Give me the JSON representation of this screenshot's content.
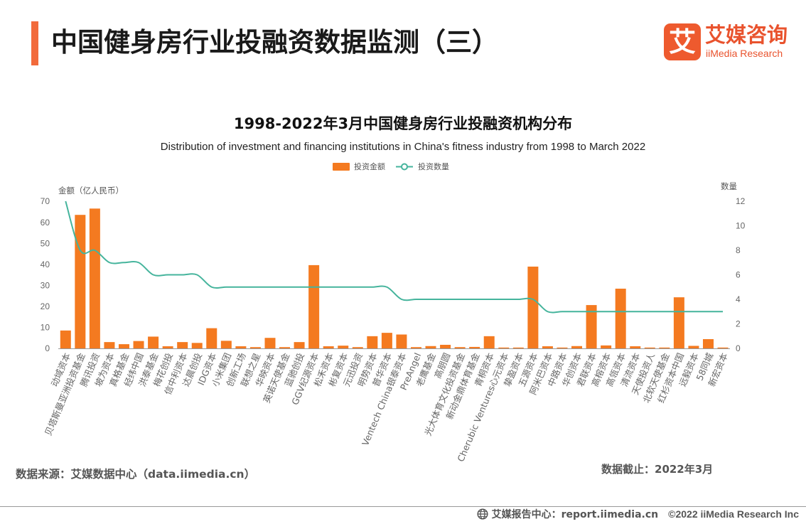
{
  "header": {
    "title": "中国健身房行业投融资数据监测（三）",
    "accent_color": "#F26A3B"
  },
  "logo": {
    "mark": "艾",
    "name_cn": "艾媒咨询",
    "name_en": "iiMedia Research",
    "color": "#EE5A2E"
  },
  "chart_data": {
    "type": "bar",
    "title": "1998-2022年3月中国健身房行业投融资机构分布",
    "subtitle": "Distribution of investment and financing institutions in China's fitness industry from 1998 to March 2022",
    "categories": [
      "动域资本",
      "贝塔斯曼亚洲投资基金",
      "腾讯投资",
      "坡为资本",
      "真格基金",
      "经纬中国",
      "洪泰基金",
      "梅花创投",
      "信中利资本",
      "达晨创投",
      "IDG资本",
      "小米集团",
      "创新工场",
      "联想之星",
      "华映资本",
      "英诺天使基金",
      "蓝驰创投",
      "GGV纪源资本",
      "松禾资本",
      "彬复资本",
      "元迅投资",
      "明势资本",
      "普华资本",
      "Ventech China银泰资本",
      "PreAngel",
      "老鹰基金",
      "高朋圆",
      "光大体育文化投资基金",
      "新动金鼎体育基金",
      "青桐资本",
      "Cherubic Ventures心元资本",
      "挚盈资本",
      "五源资本",
      "阿米巴资本",
      "中路资本",
      "华创资本",
      "君联资本",
      "高榕资本",
      "高瓴资本",
      "清流资本",
      "天使投资人",
      "北软天使基金",
      "红杉资本中国",
      "远毅资本",
      "58同城",
      "新宏资本"
    ],
    "series": [
      {
        "name": "投资金额",
        "type": "bar",
        "axis": "left",
        "values": [
          8.5,
          63.5,
          66.5,
          3,
          2,
          3.5,
          5.6,
          1,
          3,
          2.6,
          9.6,
          3.6,
          1,
          0.6,
          5,
          0.6,
          3,
          39.6,
          1,
          1.3,
          0.6,
          5.8,
          7.4,
          6.6,
          0.6,
          1.1,
          1.7,
          0.6,
          0.7,
          5.8,
          0.4,
          0.4,
          38.9,
          1,
          0.4,
          1.1,
          20.6,
          1.4,
          28.4,
          1,
          0.4,
          0.4,
          24.3,
          1.2,
          4.4,
          0.4
        ]
      },
      {
        "name": "投资数量",
        "type": "line",
        "axis": "right",
        "smooth": true,
        "values": [
          12,
          8,
          8,
          7,
          7,
          7,
          6,
          6,
          6,
          6,
          5,
          5,
          5,
          5,
          5,
          5,
          5,
          5,
          5,
          5,
          5,
          5,
          5,
          4,
          4,
          4,
          4,
          4,
          4,
          4,
          4,
          4,
          4,
          3,
          3,
          3,
          3,
          3,
          3,
          3,
          3,
          3,
          3,
          3,
          3,
          3
        ]
      }
    ],
    "xlabel": "",
    "ylabel": "金额（亿人民币）",
    "y2label": "数量",
    "ylim": [
      0,
      70
    ],
    "y2lim": [
      0,
      12
    ],
    "yticks": [
      0,
      10,
      20,
      30,
      40,
      50,
      60,
      70
    ],
    "y2ticks": [
      0,
      2,
      4,
      6,
      8,
      10,
      12
    ],
    "grid": false,
    "legend_position": "top-center",
    "colors": {
      "bar": "#F47A20",
      "line": "#45B49C"
    }
  },
  "footer": {
    "source": "数据来源：艾媒数据中心（data.iimedia.cn）",
    "cutoff": "数据截止：2022年3月",
    "report_center": "艾媒报告中心：report.iimedia.cn",
    "copyright": "©2022  iiMedia Research  Inc",
    "globe_icon": "globe-icon"
  }
}
